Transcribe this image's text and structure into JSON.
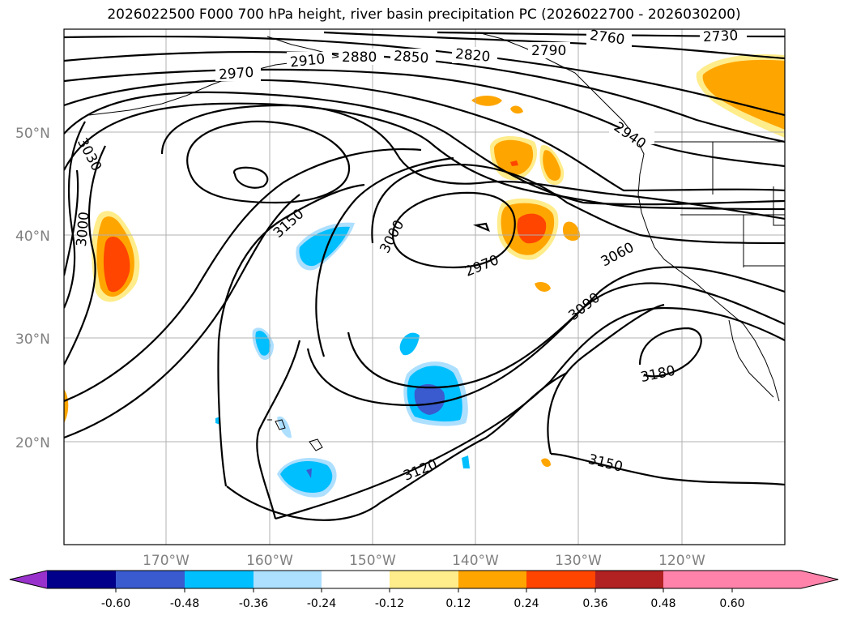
{
  "title": "2026022500 F000 700 hPa height, river basin precipitation PC (2026022700 - 2026030200)",
  "map": {
    "lat_labels": [
      "50°N",
      "40°N",
      "30°N",
      "20°N"
    ],
    "lon_labels": [
      "170°W",
      "160°W",
      "150°W",
      "140°W",
      "130°W",
      "120°W"
    ],
    "contour_labels": [
      "2760",
      "2730",
      "2790",
      "2820",
      "2850",
      "2880",
      "2910",
      "2970",
      "2940",
      "3030",
      "3000",
      "3150",
      "3000",
      "2970",
      "3060",
      "3090",
      "3180",
      "3120",
      "3150"
    ]
  },
  "colorbar": {
    "ticks": [
      "-0.60",
      "-0.48",
      "-0.36",
      "-0.24",
      "-0.12",
      "0.12",
      "0.24",
      "0.36",
      "0.48",
      "0.60"
    ],
    "colors": [
      "#9932cc",
      "#00008b",
      "#3a5bcf",
      "#00bfff",
      "#addfff",
      "#ffffff",
      "#ffec8b",
      "#ffa500",
      "#ff4500",
      "#b22222",
      "#ff82ab",
      "#ff82ab"
    ]
  }
}
